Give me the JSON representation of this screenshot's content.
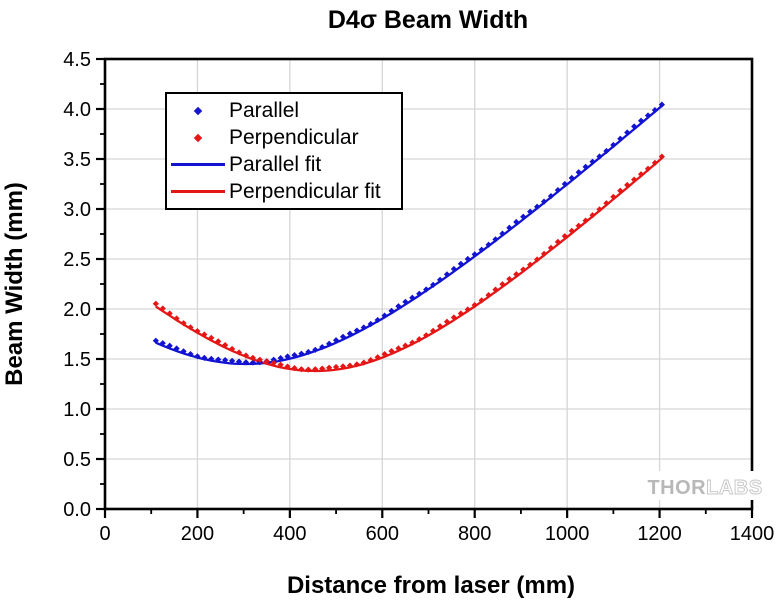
{
  "title": "D4σ Beam Width",
  "watermark": {
    "thor": "THOR",
    "labs": "LABS"
  },
  "colors": {
    "parallel": "#1313d2",
    "perpendicular": "#e51616",
    "grid": "#d6d6d6",
    "axis": "#000000",
    "watermark_solid": "#b8b8b8",
    "watermark_outline": "#c4c4c4"
  },
  "chart_data": {
    "type": "scatter",
    "title": "D4σ Beam Width",
    "xlabel": "Distance from laser (mm)",
    "ylabel": "Beam Width (mm)",
    "xlim": [
      0,
      1400
    ],
    "ylim": [
      0,
      4.5
    ],
    "grid": "major",
    "legend_position": "upper-left",
    "x_ticks": {
      "values": [
        0,
        200,
        400,
        600,
        800,
        1000,
        1200,
        1400
      ],
      "labels": [
        "0",
        "200",
        "400",
        "600",
        "800",
        "1000",
        "1200",
        "1400"
      ]
    },
    "x_minor_ticks": [
      100,
      300,
      500,
      700,
      900,
      1100,
      1300
    ],
    "y_ticks": {
      "values": [
        0,
        0.5,
        1,
        1.5,
        2,
        2.5,
        3,
        3.5,
        4,
        4.5
      ],
      "labels": [
        "0.0",
        "0.5",
        "1.0",
        "1.5",
        "2.0",
        "2.5",
        "3.0",
        "3.5",
        "4.0",
        "4.5"
      ]
    },
    "y_minor_ticks": [
      0.25,
      0.75,
      1.25,
      1.75,
      2.25,
      2.75,
      3.25,
      3.75,
      4.25
    ],
    "series": [
      {
        "label": "Parallel",
        "kind": "scatter",
        "color": "#1313d2",
        "marker": "diamond",
        "x_range": [
          110,
          1212
        ],
        "x_step": 15,
        "jitter_phase": 0.8,
        "fit": {
          "w0": 1.45,
          "z0": 305,
          "slope": 0.00418
        },
        "sample_points": {
          "x": [
            110,
            200,
            300,
            400,
            500,
            600,
            700,
            800,
            900,
            1000,
            1100,
            1200,
            1210
          ],
          "y": [
            1.66,
            1.52,
            1.45,
            1.5,
            1.66,
            1.9,
            2.2,
            2.53,
            2.88,
            3.25,
            3.63,
            4.01,
            4.05
          ]
        }
      },
      {
        "label": "Perpendicular",
        "kind": "scatter",
        "color": "#e51616",
        "marker": "diamond",
        "x_range": [
          110,
          1212
        ],
        "x_step": 15,
        "jitter_phase": 2.1,
        "fit": {
          "w0": 1.38,
          "z0": 455,
          "slope": 0.0043
        },
        "sample_points": {
          "x": [
            110,
            200,
            300,
            400,
            500,
            600,
            700,
            800,
            900,
            1000,
            1100,
            1200,
            1210
          ],
          "y": [
            2.03,
            1.76,
            1.53,
            1.4,
            1.39,
            1.51,
            1.74,
            2.03,
            2.36,
            2.72,
            3.1,
            3.49,
            3.53
          ]
        }
      },
      {
        "label": "Parallel fit",
        "kind": "line",
        "color": "#1313d2",
        "x_range": [
          110,
          1212
        ],
        "fit": {
          "w0": 1.45,
          "z0": 305,
          "slope": 0.00418
        }
      },
      {
        "label": "Perpendicular fit",
        "kind": "line",
        "color": "#e51616",
        "x_range": [
          110,
          1212
        ],
        "fit": {
          "w0": 1.38,
          "z0": 455,
          "slope": 0.0043
        }
      }
    ]
  }
}
